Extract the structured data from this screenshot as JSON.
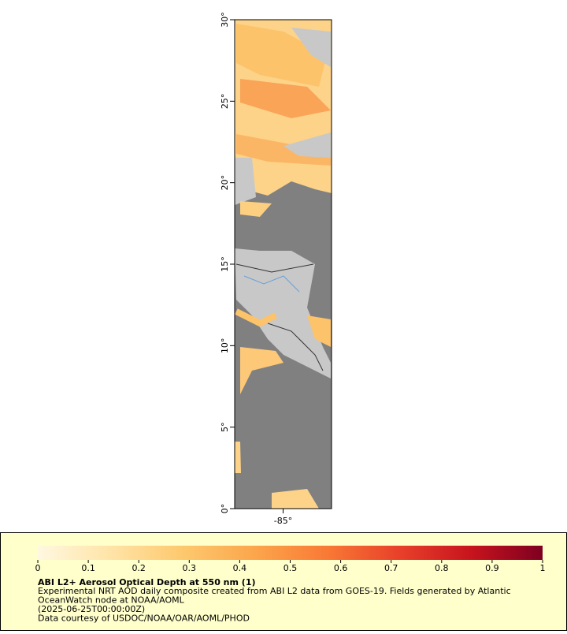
{
  "map": {
    "lat_range": [
      0,
      30
    ],
    "lon_range": [
      -88,
      -82
    ],
    "lat_ticks": [
      {
        "value": 0,
        "label": "0°"
      },
      {
        "value": 5,
        "label": "5°"
      },
      {
        "value": 10,
        "label": "10°"
      },
      {
        "value": 15,
        "label": "15°"
      },
      {
        "value": 20,
        "label": "20°"
      },
      {
        "value": 25,
        "label": "25°"
      },
      {
        "value": 30,
        "label": "30°"
      }
    ],
    "lon_ticks": [
      {
        "value": -85,
        "label": "-85°"
      }
    ],
    "colorbar": {
      "range": [
        0,
        1
      ],
      "ticks": [
        0,
        0.1,
        0.2,
        0.3,
        0.4,
        0.5,
        0.6,
        0.7,
        0.8,
        0.9,
        1
      ],
      "colors": [
        "#fff8e0",
        "#ffe4a8",
        "#fdc96e",
        "#fca64c",
        "#f97a35",
        "#e8412a",
        "#c8141e",
        "#7e0020"
      ]
    },
    "title": "ABI L2+ Aerosol Optical Depth at 550 nm (1)",
    "lines": [
      "Experimental NRT AOD daily composite created from ABI L2 data from GOES-19. Fields generated by Atlantic",
      "OceanWatch node at NOAA/AOML",
      "(2025-06-25T00:00:00Z)",
      "Data courtesy of USDOC/NOAA/OAR/AOML/PHOD"
    ]
  }
}
